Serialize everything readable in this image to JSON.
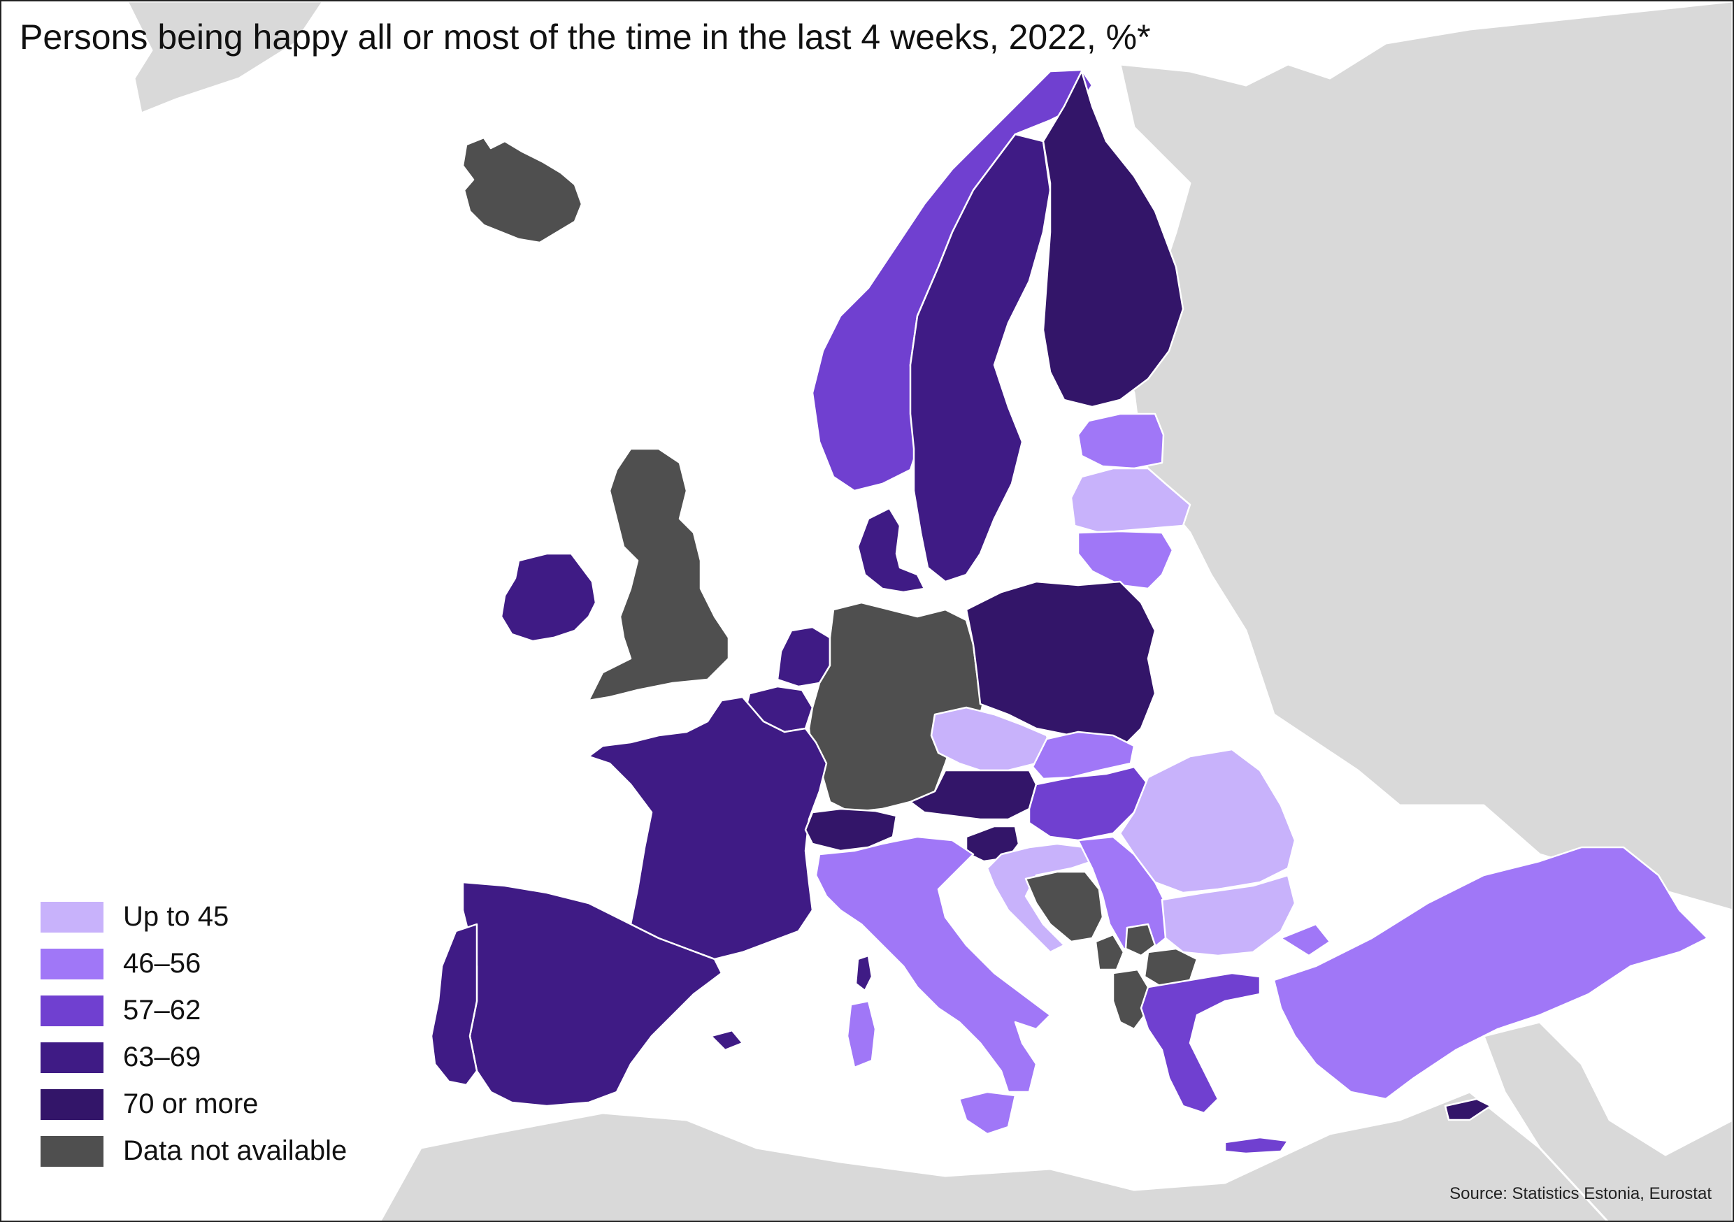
{
  "title": "Persons being happy all or most of the time in the last 4 weeks, 2022, %*",
  "source": "Source: Statistics Estonia, Eurostat",
  "legend": [
    {
      "label": "Up to 45",
      "color": "#c8b2fb"
    },
    {
      "label": "46–56",
      "color": "#a077f7"
    },
    {
      "label": "57–62",
      "color": "#7040d0"
    },
    {
      "label": "63–69",
      "color": "#3f1b85"
    },
    {
      "label": "70 or more",
      "color": "#331569"
    },
    {
      "label": "Data not available",
      "color": "#4f4f4f"
    }
  ],
  "colors": {
    "background_sea": "#ffffff",
    "non_eu_land": "#d9d9d9",
    "borders": "#ffffff"
  },
  "regions": [
    {
      "name": "Iceland",
      "class": "Data not available"
    },
    {
      "name": "Norway",
      "class": "57–62"
    },
    {
      "name": "Sweden",
      "class": "63–69"
    },
    {
      "name": "Finland",
      "class": "70 or more"
    },
    {
      "name": "Estonia",
      "class": "46–56"
    },
    {
      "name": "Latvia",
      "class": "Up to 45"
    },
    {
      "name": "Lithuania",
      "class": "46–56"
    },
    {
      "name": "Ireland",
      "class": "63–69"
    },
    {
      "name": "United Kingdom",
      "class": "Data not available"
    },
    {
      "name": "Denmark",
      "class": "63–69"
    },
    {
      "name": "Netherlands",
      "class": "63–69"
    },
    {
      "name": "Belgium",
      "class": "63–69"
    },
    {
      "name": "Germany",
      "class": "Data not available"
    },
    {
      "name": "Poland",
      "class": "70 or more"
    },
    {
      "name": "France",
      "class": "63–69"
    },
    {
      "name": "Czechia",
      "class": "Up to 45"
    },
    {
      "name": "Slovakia",
      "class": "46–56"
    },
    {
      "name": "Austria",
      "class": "70 or more"
    },
    {
      "name": "Hungary",
      "class": "57–62"
    },
    {
      "name": "Switzerland",
      "class": "70 or more"
    },
    {
      "name": "Slovenia",
      "class": "70 or more"
    },
    {
      "name": "Croatia",
      "class": "Up to 45"
    },
    {
      "name": "Bosnia and Herzegovina",
      "class": "Data not available"
    },
    {
      "name": "Serbia",
      "class": "46–56"
    },
    {
      "name": "Romania",
      "class": "Up to 45"
    },
    {
      "name": "Bulgaria",
      "class": "Up to 45"
    },
    {
      "name": "Montenegro",
      "class": "Data not available"
    },
    {
      "name": "Kosovo",
      "class": "Data not available"
    },
    {
      "name": "North Macedonia",
      "class": "Data not available"
    },
    {
      "name": "Albania",
      "class": "Data not available"
    },
    {
      "name": "Greece",
      "class": "57–62"
    },
    {
      "name": "Turkey",
      "class": "46–56"
    },
    {
      "name": "Cyprus",
      "class": "70 or more"
    },
    {
      "name": "Italy",
      "class": "46–56"
    },
    {
      "name": "Spain",
      "class": "63–69"
    },
    {
      "name": "Portugal",
      "class": "63–69"
    }
  ]
}
